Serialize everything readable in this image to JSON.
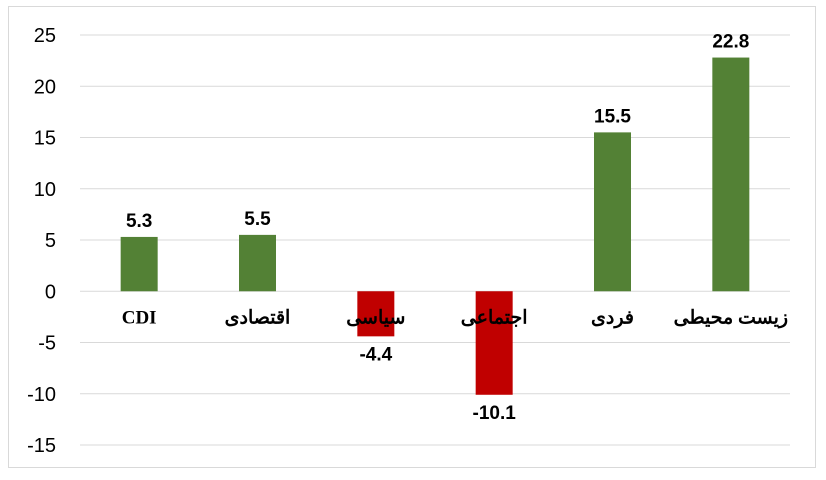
{
  "chart_data": {
    "type": "bar",
    "categories": [
      "CDI",
      "اقتصادی",
      "سیاسی",
      "اجتماعی",
      "فردی",
      "زیست محیطی"
    ],
    "values": [
      5.3,
      5.5,
      -4.4,
      -10.1,
      15.5,
      22.8
    ],
    "data_labels": [
      "5.3",
      "5.5",
      "-4.4",
      "-10.1",
      "15.5",
      "22.8"
    ],
    "yticks": [
      "25",
      "20",
      "15",
      "10",
      "5",
      "0",
      "-5",
      "-10",
      "-15"
    ],
    "ylim": [
      -15,
      25
    ],
    "grid": true,
    "title": "",
    "xlabel": "",
    "ylabel": "",
    "colors": {
      "positive": "#538135",
      "negative": "#C00000",
      "grid": "#d9d9d9"
    }
  }
}
